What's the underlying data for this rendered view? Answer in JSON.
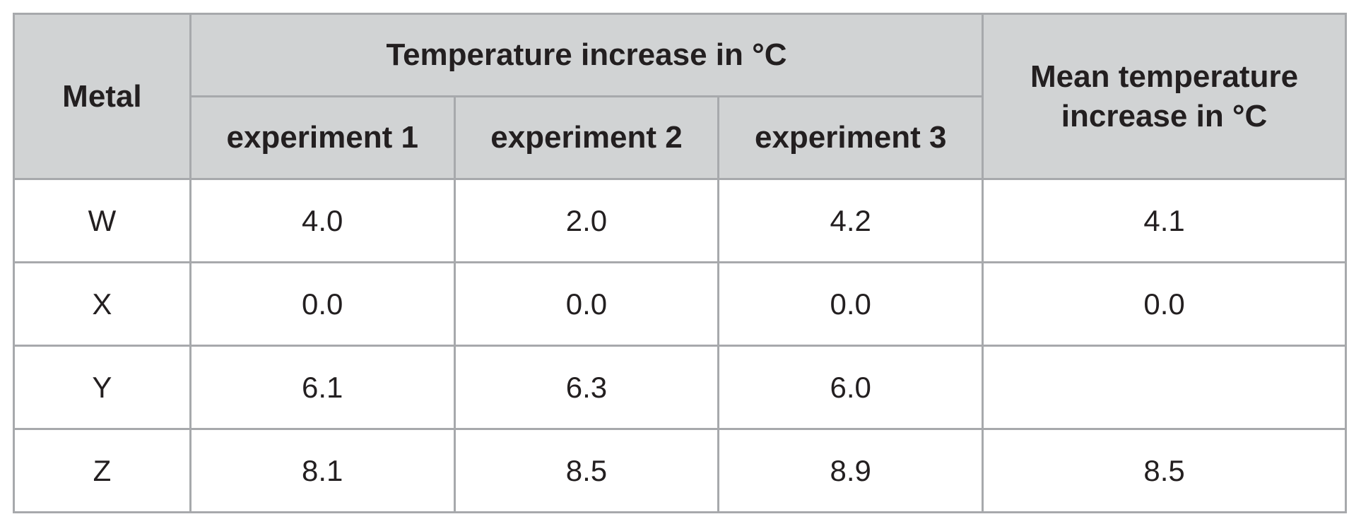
{
  "table": {
    "headers": {
      "metal": "Metal",
      "temperature_group": "Temperature increase in °C",
      "experiments": [
        "experiment 1",
        "experiment 2",
        "experiment 3"
      ],
      "mean_line1": "Mean temperature",
      "mean_line2": "increase in °C"
    },
    "rows": [
      {
        "metal": "W",
        "values": [
          "4.0",
          "2.0",
          "4.2"
        ],
        "mean": "4.1"
      },
      {
        "metal": "X",
        "values": [
          "0.0",
          "0.0",
          "0.0"
        ],
        "mean": "0.0"
      },
      {
        "metal": "Y",
        "values": [
          "6.1",
          "6.3",
          "6.0"
        ],
        "mean": ""
      },
      {
        "metal": "Z",
        "values": [
          "8.1",
          "8.5",
          "8.9"
        ],
        "mean": "8.5"
      }
    ]
  }
}
